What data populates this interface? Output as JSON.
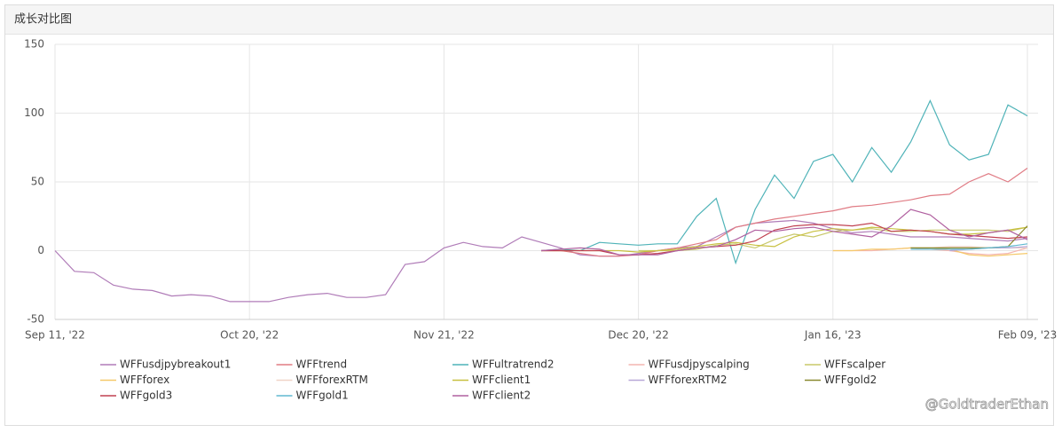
{
  "header": {
    "title": "成长对比图"
  },
  "watermark": "@GoldtraderEthan",
  "chart_data": {
    "type": "line",
    "categories": [
      "Sep 11, '22",
      null,
      null,
      null,
      null,
      null,
      null,
      null,
      null,
      null,
      "Oct 20, '22",
      null,
      null,
      null,
      null,
      null,
      null,
      null,
      null,
      null,
      "Nov 21, '22",
      null,
      null,
      null,
      null,
      null,
      null,
      null,
      null,
      null,
      "Dec 20, '22",
      null,
      null,
      null,
      null,
      null,
      null,
      null,
      null,
      null,
      "Jan 16, '23",
      null,
      null,
      null,
      null,
      null,
      null,
      null,
      null,
      null,
      "Feb 09, '23"
    ],
    "ylim": [
      -50,
      150
    ],
    "yticks": [
      -50,
      0,
      50,
      100,
      150
    ],
    "grid": true,
    "series": [
      {
        "name": "WFFusdjpybreakout1",
        "color": "#b07cb8",
        "values": [
          0,
          -15,
          -16,
          -25,
          -28,
          -29,
          -33,
          -32,
          -33,
          -37,
          -37,
          -37,
          -34,
          -32,
          -31,
          -34,
          -34,
          -32,
          -10,
          -8,
          2,
          6,
          3,
          2,
          10,
          6,
          2,
          -3,
          -4,
          -4,
          -2,
          0,
          2,
          3,
          10,
          17,
          20,
          21,
          22,
          20,
          16,
          13,
          14,
          12,
          10,
          10,
          10,
          9,
          8,
          7,
          9
        ]
      },
      {
        "name": "WFFtrend",
        "color": "#e07b84",
        "values": [
          null,
          null,
          null,
          null,
          null,
          null,
          null,
          null,
          null,
          null,
          null,
          null,
          null,
          null,
          null,
          null,
          null,
          null,
          null,
          null,
          null,
          null,
          null,
          null,
          null,
          0,
          0,
          -2,
          -4,
          -4,
          -3,
          0,
          2,
          5,
          8,
          17,
          20,
          23,
          25,
          27,
          29,
          32,
          33,
          35,
          37,
          40,
          41,
          50,
          56,
          50,
          60
        ]
      },
      {
        "name": "WFFultratrend2",
        "color": "#4fb3b8",
        "values": [
          null,
          null,
          null,
          null,
          null,
          null,
          null,
          null,
          null,
          null,
          null,
          null,
          null,
          null,
          null,
          null,
          null,
          null,
          null,
          null,
          null,
          null,
          null,
          null,
          null,
          0,
          1,
          0,
          6,
          5,
          4,
          5,
          5,
          25,
          38,
          -9,
          30,
          55,
          38,
          65,
          70,
          50,
          75,
          57,
          79,
          109,
          77,
          66,
          70,
          106,
          98
        ]
      },
      {
        "name": "WFFusdjpyscalping",
        "color": "#f4b6b0",
        "values": [
          null,
          null,
          null,
          null,
          null,
          null,
          null,
          null,
          null,
          null,
          null,
          null,
          null,
          null,
          null,
          null,
          null,
          null,
          null,
          null,
          null,
          null,
          null,
          null,
          null,
          null,
          null,
          null,
          null,
          null,
          null,
          null,
          null,
          null,
          null,
          null,
          null,
          null,
          null,
          null,
          0,
          0,
          0,
          1,
          2,
          1,
          0,
          -2,
          -3,
          -2,
          2
        ]
      },
      {
        "name": "WFFscalper",
        "color": "#c8c86a",
        "values": [
          null,
          null,
          null,
          null,
          null,
          null,
          null,
          null,
          null,
          null,
          null,
          null,
          null,
          null,
          null,
          null,
          null,
          null,
          null,
          null,
          null,
          null,
          null,
          null,
          null,
          null,
          null,
          null,
          null,
          null,
          0,
          0,
          0,
          1,
          4,
          5,
          2,
          8,
          12,
          10,
          14,
          15,
          16,
          14,
          14,
          15,
          15,
          15,
          15,
          14,
          17
        ]
      },
      {
        "name": "WFFforex",
        "color": "#f5c96a",
        "values": [
          null,
          null,
          null,
          null,
          null,
          null,
          null,
          null,
          null,
          null,
          null,
          null,
          null,
          null,
          null,
          null,
          null,
          null,
          null,
          null,
          null,
          null,
          null,
          null,
          null,
          null,
          null,
          null,
          null,
          null,
          null,
          null,
          null,
          null,
          null,
          null,
          null,
          null,
          null,
          null,
          0,
          0,
          1,
          1,
          2,
          2,
          1,
          -3,
          -4,
          -3,
          -2
        ]
      },
      {
        "name": "WFFforexRTM",
        "color": "#f0d4c8",
        "values": [
          null,
          null,
          null,
          null,
          null,
          null,
          null,
          null,
          null,
          null,
          null,
          null,
          null,
          null,
          null,
          null,
          null,
          null,
          null,
          null,
          null,
          null,
          null,
          null,
          null,
          null,
          null,
          null,
          null,
          null,
          null,
          null,
          null,
          null,
          null,
          null,
          null,
          null,
          null,
          null,
          null,
          null,
          null,
          null,
          2,
          2,
          3,
          3,
          2,
          2,
          2
        ]
      },
      {
        "name": "WFFclient1",
        "color": "#c8c040",
        "values": [
          null,
          null,
          null,
          null,
          null,
          null,
          null,
          null,
          null,
          null,
          null,
          null,
          null,
          null,
          null,
          null,
          null,
          null,
          null,
          null,
          null,
          null,
          null,
          null,
          null,
          0,
          0,
          0,
          0,
          0,
          -1,
          0,
          1,
          3,
          5,
          6,
          4,
          3,
          10,
          14,
          16,
          15,
          17,
          16,
          15,
          14,
          12,
          12,
          13,
          15,
          17
        ]
      },
      {
        "name": "WFFforexRTM2",
        "color": "#b8a8d8",
        "values": [
          null,
          null,
          null,
          null,
          null,
          null,
          null,
          null,
          null,
          null,
          null,
          null,
          null,
          null,
          null,
          null,
          null,
          null,
          null,
          null,
          null,
          null,
          null,
          null,
          null,
          null,
          null,
          null,
          null,
          null,
          null,
          null,
          null,
          null,
          null,
          null,
          null,
          null,
          null,
          null,
          null,
          null,
          null,
          null,
          null,
          null,
          0,
          1,
          2,
          2,
          3
        ]
      },
      {
        "name": "WFFgold2",
        "color": "#8a8a30",
        "values": [
          null,
          null,
          null,
          null,
          null,
          null,
          null,
          null,
          null,
          null,
          null,
          null,
          null,
          null,
          null,
          null,
          null,
          null,
          null,
          null,
          null,
          null,
          null,
          null,
          null,
          null,
          null,
          null,
          null,
          null,
          null,
          null,
          null,
          null,
          null,
          null,
          null,
          null,
          null,
          null,
          null,
          null,
          null,
          null,
          2,
          2,
          2,
          2,
          2,
          3,
          18
        ]
      },
      {
        "name": "WFFgold3",
        "color": "#c04050",
        "values": [
          null,
          null,
          null,
          null,
          null,
          null,
          null,
          null,
          null,
          null,
          null,
          null,
          null,
          null,
          null,
          null,
          null,
          null,
          null,
          null,
          null,
          null,
          null,
          null,
          null,
          0,
          0,
          0,
          0,
          -3,
          -3,
          -2,
          0,
          2,
          3,
          4,
          7,
          15,
          18,
          19,
          19,
          18,
          20,
          14,
          15,
          14,
          12,
          11,
          10,
          9,
          10
        ]
      },
      {
        "name": "WFFgold1",
        "color": "#60b8d0",
        "values": [
          null,
          null,
          null,
          null,
          null,
          null,
          null,
          null,
          null,
          null,
          null,
          null,
          null,
          null,
          null,
          null,
          null,
          null,
          null,
          null,
          null,
          null,
          null,
          null,
          null,
          null,
          null,
          null,
          null,
          null,
          null,
          null,
          null,
          null,
          null,
          null,
          null,
          null,
          null,
          null,
          null,
          null,
          null,
          null,
          1,
          1,
          1,
          1,
          2,
          3,
          5
        ]
      },
      {
        "name": "WFFclient2",
        "color": "#b060a0",
        "values": [
          null,
          null,
          null,
          null,
          null,
          null,
          null,
          null,
          null,
          null,
          null,
          null,
          null,
          null,
          null,
          null,
          null,
          null,
          null,
          null,
          null,
          null,
          null,
          null,
          null,
          0,
          1,
          2,
          1,
          -3,
          -3,
          -3,
          0,
          2,
          3,
          8,
          15,
          14,
          16,
          17,
          14,
          12,
          10,
          18,
          30,
          26,
          15,
          10,
          13,
          15,
          8
        ]
      }
    ]
  }
}
